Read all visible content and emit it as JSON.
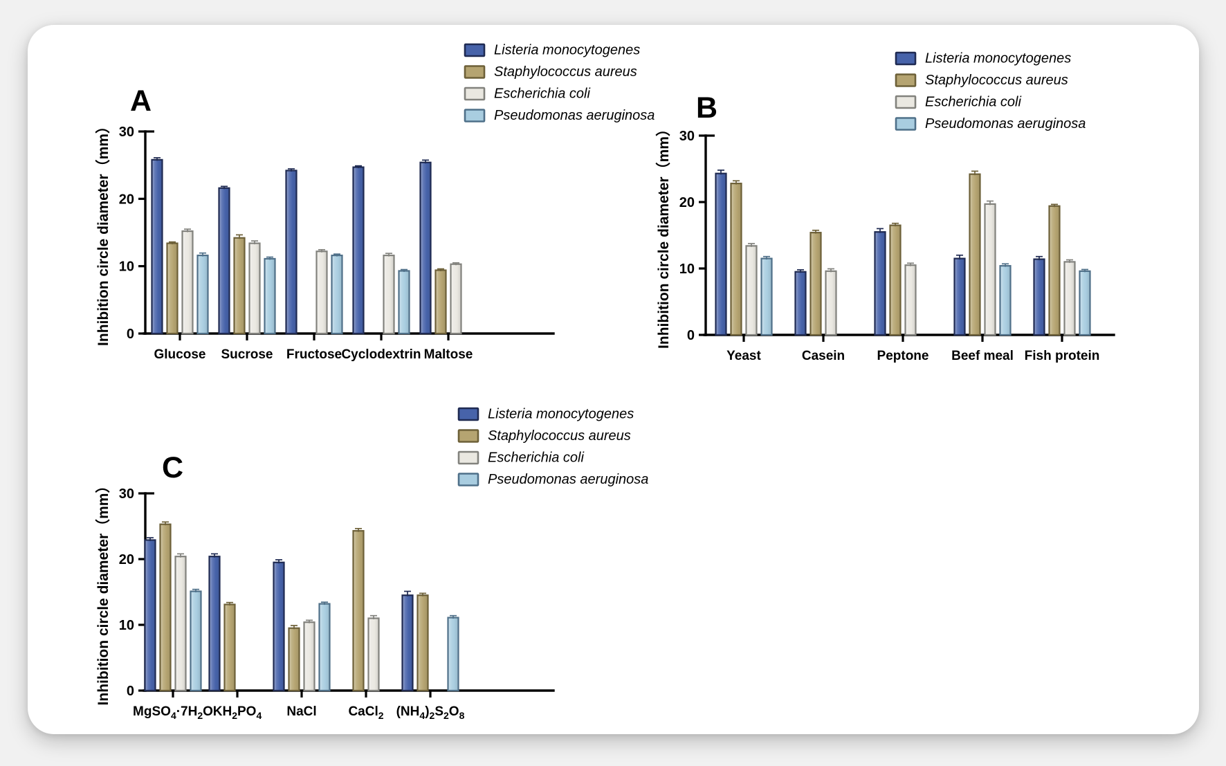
{
  "figure": {
    "card_background": "#ffffff",
    "page_background": "#f1f1f1"
  },
  "series_styles": [
    {
      "name": "Listeria monocytogenes",
      "fill": "#4763aa",
      "stroke": "#1f2a52"
    },
    {
      "name": "Staphylococcus aureus",
      "fill": "#b5a471",
      "stroke": "#6d6038"
    },
    {
      "name": "Escherichia coli",
      "fill": "#eae8e1",
      "stroke": "#82827d"
    },
    {
      "name": "Pseudomonas aeruginosa",
      "fill": "#a9cde0",
      "stroke": "#4f7089"
    }
  ],
  "chart_data": [
    {
      "type": "bar",
      "panel_label": "A",
      "title": "",
      "xlabel": "",
      "ylabel": "Inhibition circle diameter（mm）",
      "ylim": [
        0,
        30
      ],
      "yticks": [
        0,
        10,
        20,
        30
      ],
      "legend_position": "top-right",
      "grid": false,
      "categories": [
        "Glucose",
        "Sucrose",
        "Fructose",
        "Cyclodextrin",
        "Maltose"
      ],
      "series": [
        {
          "name": "Listeria monocytogenes",
          "values": [
            25.8,
            21.6,
            24.2,
            24.7,
            25.4
          ],
          "errors": [
            0.3,
            0.25,
            0.25,
            0.2,
            0.35
          ]
        },
        {
          "name": "Staphylococcus aureus",
          "values": [
            13.4,
            14.2,
            0,
            0,
            9.4
          ],
          "errors": [
            0.2,
            0.45,
            0,
            0,
            0.2
          ]
        },
        {
          "name": "Escherichia coli",
          "values": [
            15.2,
            13.4,
            12.2,
            11.6,
            10.3
          ],
          "errors": [
            0.3,
            0.35,
            0.25,
            0.3,
            0.2
          ]
        },
        {
          "name": "Pseudomonas aeruginosa",
          "values": [
            11.6,
            11.1,
            11.6,
            9.3,
            0
          ],
          "errors": [
            0.35,
            0.25,
            0.2,
            0.2,
            0
          ]
        }
      ]
    },
    {
      "type": "bar",
      "panel_label": "B",
      "title": "",
      "xlabel": "",
      "ylabel": "Inhibition circle diameter（mm）",
      "ylim": [
        0,
        30
      ],
      "yticks": [
        0,
        10,
        20,
        30
      ],
      "legend_position": "top-right",
      "grid": false,
      "categories": [
        "Yeast",
        "Casein",
        "Peptone",
        "Beef meal",
        "Fish protein"
      ],
      "series": [
        {
          "name": "Listeria monocytogenes",
          "values": [
            24.3,
            9.5,
            15.5,
            11.5,
            11.4
          ],
          "errors": [
            0.5,
            0.3,
            0.5,
            0.5,
            0.4
          ]
        },
        {
          "name": "Staphylococcus aureus",
          "values": [
            22.8,
            15.4,
            16.5,
            24.2,
            19.4
          ],
          "errors": [
            0.4,
            0.35,
            0.3,
            0.45,
            0.25
          ]
        },
        {
          "name": "Escherichia coli",
          "values": [
            13.4,
            9.6,
            10.5,
            19.7,
            11.0
          ],
          "errors": [
            0.35,
            0.35,
            0.3,
            0.45,
            0.3
          ]
        },
        {
          "name": "Pseudomonas aeruginosa",
          "values": [
            11.5,
            0,
            0,
            10.4,
            9.6
          ],
          "errors": [
            0.3,
            0,
            0,
            0.3,
            0.25
          ]
        }
      ]
    },
    {
      "type": "bar",
      "panel_label": "C",
      "title": "",
      "xlabel": "",
      "ylabel": "Inhibition circle diameter（mm）",
      "ylim": [
        0,
        30
      ],
      "yticks": [
        0,
        10,
        20,
        30
      ],
      "legend_position": "top-right",
      "grid": false,
      "categories": [
        "MgSO₄·7H₂O",
        "KH₂PO₄",
        "NaCl",
        "CaCl₂",
        "(NH₄)₂S₂O₈"
      ],
      "series": [
        {
          "name": "Listeria monocytogenes",
          "values": [
            22.9,
            20.4,
            19.5,
            0,
            14.5
          ],
          "errors": [
            0.35,
            0.4,
            0.4,
            0,
            0.6
          ]
        },
        {
          "name": "Staphylococcus aureus",
          "values": [
            25.3,
            13.1,
            9.5,
            24.3,
            14.5
          ],
          "errors": [
            0.35,
            0.3,
            0.4,
            0.35,
            0.3
          ]
        },
        {
          "name": "Escherichia coli",
          "values": [
            20.4,
            0,
            10.4,
            11.0,
            0
          ],
          "errors": [
            0.4,
            0,
            0.3,
            0.4,
            0
          ]
        },
        {
          "name": "Pseudomonas aeruginosa",
          "values": [
            15.1,
            0,
            13.2,
            0,
            11.1
          ],
          "errors": [
            0.3,
            0,
            0.25,
            0,
            0.3
          ]
        }
      ]
    }
  ]
}
